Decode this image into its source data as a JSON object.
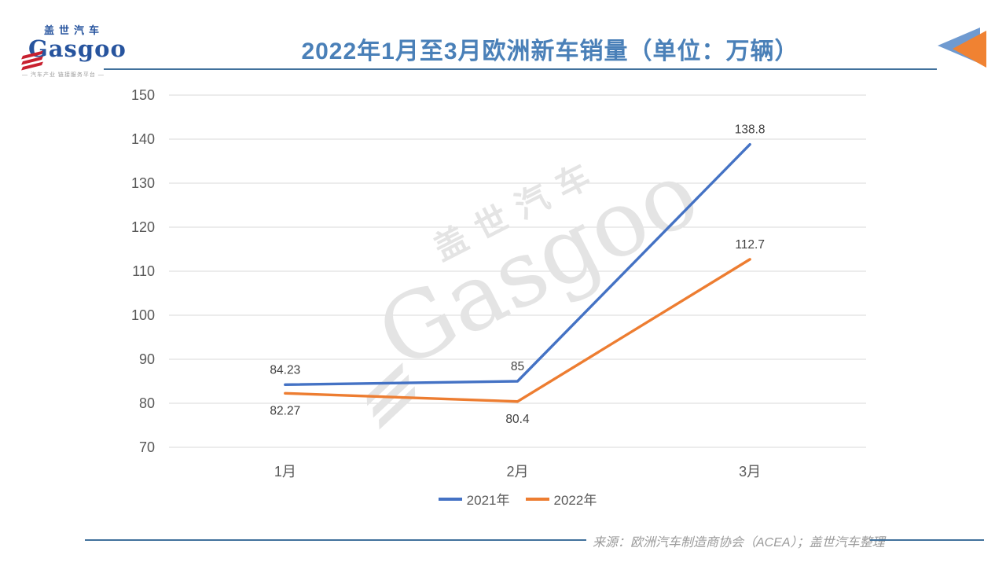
{
  "logo": {
    "cn": "盖世汽车",
    "en": "Gasgoo",
    "tagline": "— 汽车产业 链接服务平台 —"
  },
  "header": {
    "title": "2022年1月至3月欧洲新车销量（单位：万辆）"
  },
  "watermark": {
    "cn": "盖世汽车",
    "en": "Gasgoo"
  },
  "footer": {
    "source": "来源：欧洲汽车制造商协会（ACEA）；盖世汽车整理"
  },
  "theme": {
    "title_color": "#4A80B8",
    "divider_color": "#41719C",
    "grid_color": "#D9D9D9",
    "axis_text_color": "#595959",
    "data_label_color": "#404040",
    "watermark_color": "#E4E4E4",
    "logo_blue": "#27549E",
    "logo_red": "#C8202F",
    "triangle_blue": "#6F9AD0",
    "triangle_orange": "#F08232",
    "source_color": "#9B9B9B",
    "legend_text_color": "#595959"
  },
  "chart_data": {
    "type": "line",
    "title": "2022年1月至3月欧洲新车销量（单位：万辆）",
    "categories": [
      "1月",
      "2月",
      "3月"
    ],
    "series": [
      {
        "name": "2021年",
        "color": "#4472C4",
        "values": [
          84.23,
          85,
          138.8
        ],
        "labels": [
          "84.23",
          "85",
          "138.8"
        ],
        "label_positions": [
          "above",
          "above",
          "above"
        ]
      },
      {
        "name": "2022年",
        "color": "#ED7D31",
        "values": [
          82.27,
          80.4,
          112.7
        ],
        "labels": [
          "82.27",
          "80.4",
          "112.7"
        ],
        "label_positions": [
          "below",
          "below",
          "above"
        ]
      }
    ],
    "xlabel": "",
    "ylabel": "",
    "ylim": [
      70,
      150
    ],
    "yticks": [
      150,
      140,
      130,
      120,
      110,
      100,
      90,
      80,
      70
    ],
    "grid": true,
    "legend_position": "bottom"
  }
}
